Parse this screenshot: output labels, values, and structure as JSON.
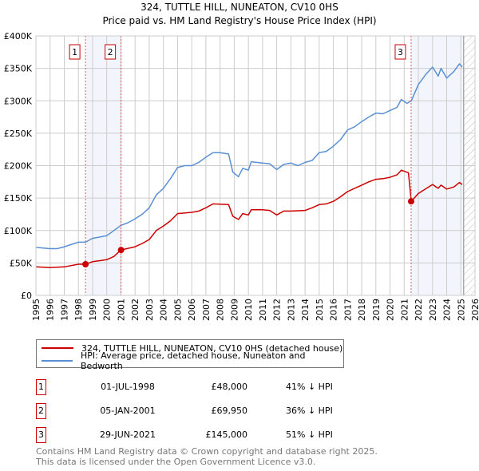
{
  "chart_data": {
    "type": "line",
    "title": "324, TUTTLE HILL, NUNEATON, CV10 0HS",
    "subtitle": "Price paid vs. HM Land Registry's House Price Index (HPI)",
    "xlim": [
      1995,
      2026
    ],
    "ylim": [
      0,
      400000
    ],
    "x_ticks": [
      "1995",
      "1996",
      "1997",
      "1998",
      "1999",
      "2000",
      "2001",
      "2002",
      "2003",
      "2004",
      "2005",
      "2006",
      "2007",
      "2008",
      "2009",
      "2010",
      "2011",
      "2012",
      "2013",
      "2014",
      "2015",
      "2016",
      "2017",
      "2018",
      "2019",
      "2020",
      "2021",
      "2022",
      "2023",
      "2024",
      "2025",
      "2026"
    ],
    "y_ticks": [
      {
        "v": 0,
        "label": "£0"
      },
      {
        "v": 50000,
        "label": "£50K"
      },
      {
        "v": 100000,
        "label": "£100K"
      },
      {
        "v": 150000,
        "label": "£150K"
      },
      {
        "v": 200000,
        "label": "£200K"
      },
      {
        "v": 250000,
        "label": "£250K"
      },
      {
        "v": 300000,
        "label": "£300K"
      },
      {
        "v": 350000,
        "label": "£350K"
      },
      {
        "v": 400000,
        "label": "£400K"
      }
    ],
    "grid": true,
    "forecast_hatch_from": 2025.2,
    "series": [
      {
        "name": "324, TUTTLE HILL, NUNEATON, CV10 0HS (detached house)",
        "color": "#cc0000",
        "x": [
          1995,
          1996,
          1997,
          1998,
          1998.5,
          1999,
          2000,
          2000.5,
          2001,
          2002,
          2002.5,
          2003,
          2003.5,
          2004,
          2004.5,
          2005,
          2006,
          2006.5,
          2007,
          2007.5,
          2008.6,
          2008.9,
          2009.3,
          2009.6,
          2010,
          2010.2,
          2011,
          2011.5,
          2012,
          2012.5,
          2013,
          2014,
          2014.5,
          2015,
          2015.5,
          2016,
          2016.5,
          2017,
          2017.5,
          2018,
          2018.5,
          2019,
          2019.5,
          2020,
          2020.5,
          2020.8,
          2021.3,
          2021.5,
          2022,
          2022.5,
          2023,
          2023.4,
          2023.6,
          2024,
          2024.5,
          2024.9,
          2025.1
        ],
        "y": [
          44,
          43,
          44,
          48,
          48,
          52,
          55,
          60,
          70,
          75,
          80,
          86,
          100,
          107,
          115,
          126,
          128,
          130,
          135,
          141,
          140,
          122,
          117,
          126,
          124,
          132,
          132,
          131,
          124,
          130,
          130,
          131,
          135,
          140,
          141,
          145,
          152,
          160,
          165,
          170,
          175,
          179,
          180,
          182,
          186,
          193,
          189,
          145,
          157,
          164,
          171,
          165,
          170,
          164,
          167,
          174,
          171
        ]
      },
      {
        "name": "HPI: Average price, detached house, Nuneaton and Bedworth",
        "color": "#5b8fd4",
        "x": [
          1995,
          1996,
          1996.5,
          1997,
          1998,
          1998.5,
          1999,
          2000,
          2000.5,
          2001,
          2001.5,
          2002,
          2002.5,
          2003,
          2003.5,
          2004,
          2004.5,
          2005,
          2005.5,
          2006,
          2006.5,
          2007,
          2007.5,
          2008,
          2008.6,
          2008.9,
          2009.3,
          2009.6,
          2010,
          2010.2,
          2011,
          2011.5,
          2012,
          2012.5,
          2013,
          2013.5,
          2014,
          2014.5,
          2015,
          2015.5,
          2016,
          2016.5,
          2017,
          2017.5,
          2018,
          2018.5,
          2019,
          2019.5,
          2020,
          2020.5,
          2020.8,
          2021.2,
          2021.5,
          2022,
          2022.5,
          2023,
          2023.4,
          2023.6,
          2024,
          2024.5,
          2024.9,
          2025.1
        ],
        "y": [
          74,
          72,
          72,
          75,
          82,
          82,
          88,
          92,
          100,
          108,
          112,
          118,
          125,
          135,
          155,
          165,
          180,
          197,
          200,
          200,
          205,
          213,
          220,
          220,
          218,
          190,
          183,
          196,
          193,
          206,
          204,
          203,
          194,
          202,
          204,
          200,
          205,
          208,
          220,
          222,
          230,
          240,
          255,
          260,
          268,
          275,
          281,
          280,
          285,
          290,
          302,
          296,
          300,
          325,
          340,
          352,
          338,
          350,
          335,
          345,
          357,
          352
        ]
      }
    ],
    "sales": [
      {
        "label": "1",
        "x": 1998.5,
        "y": 48,
        "date": "01-JUL-1998",
        "price": "£48,000",
        "delta": "41% ↓ HPI"
      },
      {
        "label": "2",
        "x": 2001.01,
        "y": 69.95,
        "date": "05-JAN-2001",
        "price": "£69,950",
        "delta": "36% ↓ HPI"
      },
      {
        "label": "3",
        "x": 2021.49,
        "y": 145,
        "date": "29-JUN-2021",
        "price": "£145,000",
        "delta": "51% ↓ HPI"
      }
    ],
    "shaded_ranges": [
      [
        1998.5,
        2001.01
      ],
      [
        2021.49,
        2025.2
      ]
    ]
  },
  "header": {
    "title": "324, TUTTLE HILL, NUNEATON, CV10 0HS",
    "subtitle": "Price paid vs. HM Land Registry's House Price Index (HPI)"
  },
  "legend": {
    "property": "324, TUTTLE HILL, NUNEATON, CV10 0HS (detached house)",
    "hpi": "HPI: Average price, detached house, Nuneaton and Bedworth"
  },
  "sales_table": [
    {
      "n": "1",
      "date": "01-JUL-1998",
      "price": "£48,000",
      "delta": "41% ↓ HPI"
    },
    {
      "n": "2",
      "date": "05-JAN-2001",
      "price": "£69,950",
      "delta": "36% ↓ HPI"
    },
    {
      "n": "3",
      "date": "29-JUN-2021",
      "price": "£145,000",
      "delta": "51% ↓ HPI"
    }
  ],
  "footer": {
    "line1": "Contains HM Land Registry data © Crown copyright and database right 2025.",
    "line2": "This data is licensed under the Open Government Licence v3.0."
  }
}
